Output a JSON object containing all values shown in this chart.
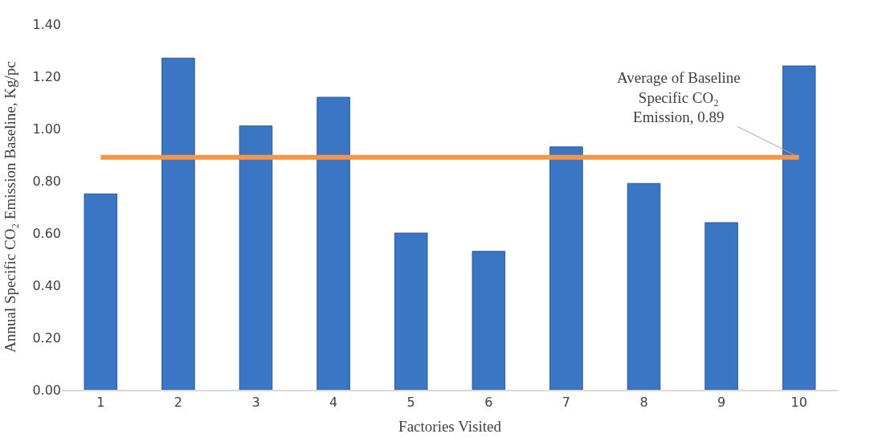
{
  "chart_data": {
    "type": "bar",
    "xlabel": "Factories Visited",
    "ylabel": "Annual Specific CO₂ Emission Baseline, Kg/pc",
    "categories": [
      "1",
      "2",
      "3",
      "4",
      "5",
      "6",
      "7",
      "8",
      "9",
      "10"
    ],
    "values": [
      0.75,
      1.27,
      1.01,
      1.12,
      0.6,
      0.53,
      0.93,
      0.79,
      0.64,
      1.24
    ],
    "color": "#3b76c4",
    "ylim": [
      0,
      1.4
    ],
    "yticks": [
      {
        "value": 0,
        "label": "0.00"
      },
      {
        "value": 0.2,
        "label": "0.20"
      },
      {
        "value": 0.4,
        "label": "0.40"
      },
      {
        "value": 0.6,
        "label": "0.60"
      },
      {
        "value": 0.8,
        "label": "0.80"
      },
      {
        "value": 1.0,
        "label": "1.00"
      },
      {
        "value": 1.2,
        "label": "1.20"
      },
      {
        "value": 1.4,
        "label": "1.40"
      }
    ],
    "ref_lines": [
      {
        "axis": "y",
        "value": 0.89,
        "label": "Average of Baseline Specific CO₂ Emission, 0.89",
        "color": "#f79646"
      }
    ],
    "line_style": "solid"
  }
}
